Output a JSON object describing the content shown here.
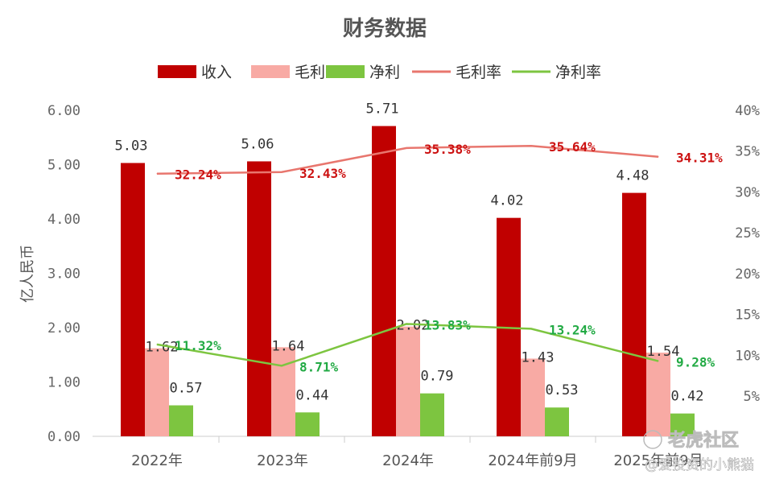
{
  "chart_data": {
    "type": "bar",
    "title": "财务数据",
    "ylabel": "亿人民币",
    "ylim": [
      0,
      6
    ],
    "yticks": [
      "0.00",
      "1.00",
      "2.00",
      "3.00",
      "4.00",
      "5.00",
      "6.00"
    ],
    "y2lim": [
      0,
      40
    ],
    "y2ticks": [
      "5%",
      "10%",
      "15%",
      "20%",
      "25%",
      "30%",
      "35%",
      "40%"
    ],
    "categories": [
      "2022年",
      "2023年",
      "2024年",
      "2024年前9月",
      "2025年前9月"
    ],
    "series": [
      {
        "name": "收入",
        "type": "bar",
        "color": "#c00000",
        "values": [
          5.03,
          5.06,
          5.71,
          4.02,
          4.48
        ],
        "labels": [
          "5.03",
          "5.06",
          "5.71",
          "4.02",
          "4.48"
        ]
      },
      {
        "name": "毛利",
        "type": "bar",
        "color": "#f8aaa4",
        "values": [
          1.62,
          1.64,
          2.02,
          1.43,
          1.54
        ],
        "labels": [
          "1.62",
          "1.64",
          "2.02",
          "1.43",
          "1.54"
        ]
      },
      {
        "name": "净利",
        "type": "bar",
        "color": "#7dc540",
        "values": [
          0.57,
          0.44,
          0.79,
          0.53,
          0.42
        ],
        "labels": [
          "0.57",
          "0.44",
          "0.79",
          "0.53",
          "0.42"
        ]
      },
      {
        "name": "毛利率",
        "type": "line",
        "axis": "right",
        "color": "#e8766e",
        "label_color": "#cc1111",
        "values": [
          32.24,
          32.43,
          35.38,
          35.64,
          34.31
        ],
        "labels": [
          "32.24%",
          "32.43%",
          "35.38%",
          "35.64%",
          "34.31%"
        ]
      },
      {
        "name": "净利率",
        "type": "line",
        "axis": "right",
        "color": "#7dc540",
        "label_color": "#22aa44",
        "values": [
          11.32,
          8.71,
          13.83,
          13.24,
          9.28
        ],
        "labels": [
          "11.32%",
          "8.71%",
          "13.83%",
          "13.24%",
          "9.28%"
        ]
      }
    ],
    "legend": "top",
    "grid": false
  },
  "watermark": {
    "brand": "老虎社区",
    "author": "@爱投资的小熊猫"
  }
}
